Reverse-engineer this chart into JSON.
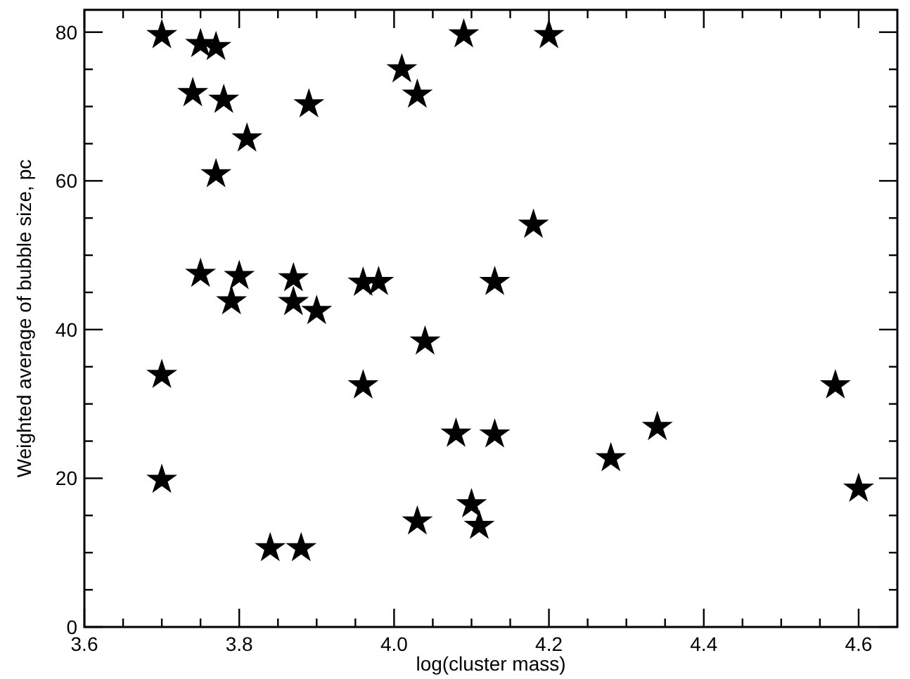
{
  "chart_data": {
    "type": "scatter",
    "xlabel": "log(cluster mass)",
    "ylabel": "Weighted average of bubble size, pc",
    "marker": "star",
    "grid": false,
    "xlim": [
      3.6,
      4.65
    ],
    "ylim": [
      0,
      83
    ],
    "xticks": [
      3.6,
      {
        "value": 3.65,
        "label": null
      },
      3.8,
      {
        "value": 3.7,
        "label": null
      },
      {
        "value": 3.75,
        "label": null
      },
      {
        "value": 3.85,
        "label": null
      },
      {
        "value": 3.9,
        "label": null
      },
      {
        "value": 3.95,
        "label": null
      },
      {
        "value": 4,
        "label": "4.0"
      },
      {
        "value": 4.05,
        "label": null
      },
      {
        "value": 4.1,
        "label": null
      },
      {
        "value": 4.15,
        "label": null
      },
      4.2,
      {
        "value": 4.25,
        "label": null
      },
      {
        "value": 4.3,
        "label": null
      },
      {
        "value": 4.35,
        "label": null
      },
      4.4,
      {
        "value": 4.45,
        "label": null
      },
      {
        "value": 4.5,
        "label": null
      },
      {
        "value": 4.55,
        "label": null
      },
      4.6
    ],
    "yticks": [
      0,
      {
        "value": 5,
        "label": null
      },
      {
        "value": 10,
        "label": null
      },
      {
        "value": 15,
        "label": null
      },
      20,
      {
        "value": 25,
        "label": null
      },
      {
        "value": 30,
        "label": null
      },
      {
        "value": 35,
        "label": null
      },
      40,
      {
        "value": 45,
        "label": null
      },
      {
        "value": 50,
        "label": null
      },
      {
        "value": 55,
        "label": null
      },
      60,
      {
        "value": 65,
        "label": null
      },
      {
        "value": 70,
        "label": null
      },
      {
        "value": 75,
        "label": null
      },
      80
    ],
    "series": [
      {
        "color": "#000000",
        "x": [
          3.7,
          3.75,
          3.77,
          3.74,
          3.78,
          3.81,
          3.77,
          3.89,
          4.01,
          4.03,
          4.09,
          4.2,
          3.75,
          3.8,
          3.79,
          3.87,
          3.87,
          3.9,
          3.96,
          3.98,
          4.13,
          4.18,
          4.04,
          3.7,
          3.96,
          4.08,
          4.13,
          3.7,
          3.84,
          3.88,
          4.03,
          4.1,
          4.11,
          4.28,
          4.34,
          4.57,
          4.6
        ],
        "values": [
          79.6,
          78.4,
          78.0,
          71.8,
          70.9,
          65.7,
          60.9,
          70.3,
          75.0,
          71.6,
          79.7,
          79.6,
          47.5,
          47.2,
          43.8,
          46.9,
          43.7,
          42.5,
          46.3,
          46.4,
          46.4,
          54.1,
          38.4,
          33.9,
          32.5,
          26.0,
          25.9,
          19.8,
          10.6,
          10.6,
          14.2,
          16.5,
          13.6,
          22.7,
          26.9,
          32.5,
          18.6
        ]
      }
    ]
  }
}
